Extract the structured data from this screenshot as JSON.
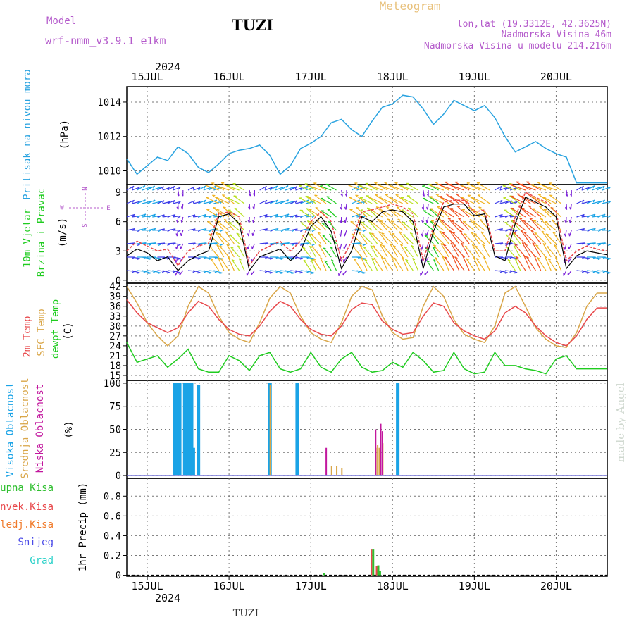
{
  "header": {
    "model_label": "Model",
    "model_name": "wrf-nmm_v3.9.1 e1km",
    "station": "TUZI",
    "title": "Meteogram",
    "lonlat": "lon,lat (19.3312E, 42.3625N)",
    "altitude": "Nadmorska Visina 46m",
    "model_altitude": "Nadmorska Visina u modelu 214.216m",
    "footer_station": "TUZI",
    "watermark": "made by Angel"
  },
  "colors": {
    "pressure": "#29a3e0",
    "temp2m": "#e8474a",
    "sfc": "#d9a648",
    "dewpt": "#1fcc1f",
    "high_cloud": "#1aa3e6",
    "mid_cloud": "#d9a648",
    "low_cloud": "#c2179e",
    "total_precip": "#2fbf2f",
    "conv_precip": "#e8474a",
    "frz_precip": "#f07a2a",
    "snow": "#4a4ae8",
    "hail": "#2ad1c9",
    "grid": "#777777"
  },
  "time_axis": {
    "year": "2024",
    "days": [
      "15JUL",
      "16JUL",
      "17JUL",
      "18JUL",
      "19JUL",
      "20JUL"
    ],
    "start_hour": 0,
    "end_hour": 141
  },
  "panels": {
    "pressure": {
      "label": "Pritisak na nivou mora",
      "unit": "(hPa)",
      "ticks": [
        "1010",
        "1012",
        "1014"
      ]
    },
    "wind": {
      "label1": "10m Vjetar",
      "label2": "Brzina i Pravac",
      "unit": "(m/s)",
      "ticks": [
        "0",
        "3",
        "6",
        "9"
      ],
      "compass": {
        "n": "N",
        "s": "S",
        "e": "E",
        "w": "W"
      }
    },
    "temp": {
      "label_2m": "2m Temp",
      "label_sfc": "SFC Temp",
      "label_dew": "dewpt Temp",
      "unit": "(C)",
      "ticks": [
        "15",
        "18",
        "21",
        "24",
        "27",
        "30",
        "33",
        "36",
        "39",
        "42"
      ]
    },
    "cloud": {
      "label_high": "Visoka Oblacnost",
      "label_mid": "Srednja Oblacnost",
      "label_low": "Niska Oblacnost",
      "unit": "(%)",
      "ticks": [
        "0",
        "25",
        "50",
        "75",
        "100"
      ]
    },
    "precip": {
      "label_total": "Ukupna Kisa",
      "label_conv": "Konvek.Kisa",
      "label_frz": "Zaledj.Kisa",
      "label_snow": "Snijeg",
      "label_hail": "Grad",
      "unit": "1hr Precip (mm)",
      "ticks": [
        "0",
        "0.2",
        "0.4",
        "0.6",
        "0.8"
      ]
    }
  },
  "chart_data": {
    "type": "line",
    "x_unit": "hours since 15JUL 00",
    "pressure": {
      "hours": [
        0,
        3,
        6,
        9,
        12,
        15,
        18,
        21,
        24,
        27,
        30,
        33,
        36,
        39,
        42,
        45,
        48,
        51,
        54,
        57,
        60,
        63,
        66,
        69,
        72,
        75,
        78,
        81,
        84,
        87,
        90,
        93,
        96,
        99,
        102,
        105,
        108,
        111,
        114,
        117,
        120,
        123,
        126,
        129,
        132,
        135,
        138,
        141
      ],
      "values": [
        1010.7,
        1009.8,
        1010.3,
        1010.8,
        1010.6,
        1011.4,
        1011.0,
        1010.2,
        1009.9,
        1010.4,
        1011.0,
        1011.2,
        1011.3,
        1011.5,
        1010.9,
        1009.8,
        1010.3,
        1011.3,
        1011.6,
        1012.0,
        1012.8,
        1013.0,
        1012.4,
        1012.0,
        1012.9,
        1013.7,
        1013.9,
        1014.4,
        1014.3,
        1013.6,
        1012.7,
        1013.3,
        1014.1,
        1013.8,
        1013.5,
        1013.8,
        1013.1,
        1012.0,
        1011.1,
        1011.4,
        1011.7,
        1011.3,
        1011.0,
        1010.8,
        1009.3,
        1009.3,
        1009.3,
        1009.3
      ],
      "ylim": [
        1009.2,
        1014.9
      ]
    },
    "wind": {
      "hours": [
        0,
        3,
        6,
        9,
        12,
        15,
        18,
        21,
        24,
        27,
        30,
        33,
        36,
        39,
        42,
        45,
        48,
        51,
        54,
        57,
        60,
        63,
        66,
        69,
        72,
        75,
        78,
        81,
        84,
        87,
        90,
        93,
        96,
        99,
        102,
        105,
        108,
        111,
        114,
        117,
        120,
        123,
        126,
        129,
        132,
        135,
        138,
        141
      ],
      "speed": [
        2.5,
        3.2,
        2.8,
        2.0,
        2.4,
        1.0,
        2.0,
        2.6,
        3.0,
        6.5,
        6.8,
        5.8,
        1.0,
        2.4,
        2.8,
        3.2,
        2.0,
        3.0,
        5.5,
        6.5,
        5.0,
        1.2,
        3.0,
        6.5,
        6.0,
        7.0,
        7.2,
        7.0,
        6.0,
        1.2,
        5.0,
        7.5,
        7.8,
        7.8,
        6.6,
        6.8,
        2.5,
        2.0,
        5.8,
        8.5,
        8.0,
        7.5,
        6.5,
        1.2,
        2.5,
        3.0,
        2.8,
        2.6
      ],
      "gust": [
        3.0,
        4.0,
        3.5,
        3.0,
        3.2,
        1.5,
        3.0,
        3.5,
        3.8,
        6.8,
        7.0,
        6.5,
        1.5,
        3.0,
        3.5,
        4.0,
        3.0,
        4.0,
        6.0,
        7.0,
        6.0,
        2.0,
        4.0,
        7.0,
        7.2,
        7.5,
        7.8,
        7.5,
        6.8,
        2.0,
        5.5,
        8.0,
        8.2,
        8.2,
        7.0,
        7.2,
        3.0,
        3.0,
        6.5,
        9.0,
        8.5,
        8.0,
        7.0,
        2.0,
        3.0,
        3.5,
        3.2,
        3.0
      ],
      "ylim": [
        -0.3,
        9.8
      ]
    },
    "temperature": {
      "hours": [
        0,
        3,
        6,
        9,
        12,
        15,
        18,
        21,
        24,
        27,
        30,
        33,
        36,
        39,
        42,
        45,
        48,
        51,
        54,
        57,
        60,
        63,
        66,
        69,
        72,
        75,
        78,
        81,
        84,
        87,
        90,
        93,
        96,
        99,
        102,
        105,
        108,
        111,
        114,
        117,
        120,
        123,
        126,
        129,
        132,
        135,
        138,
        141
      ],
      "t2m": [
        38.0,
        34.0,
        31.0,
        29.5,
        28.0,
        29.5,
        34.0,
        37.5,
        36.0,
        32.0,
        29.0,
        27.5,
        27.0,
        30.0,
        34.5,
        37.5,
        36.0,
        32.0,
        29.0,
        27.5,
        27.0,
        30.0,
        35.0,
        37.0,
        36.5,
        31.5,
        29.0,
        27.5,
        28.0,
        33.0,
        37.0,
        36.0,
        31.0,
        28.5,
        27.0,
        26.0,
        28.5,
        34.0,
        36.0,
        34.0,
        30.0,
        27.0,
        25.0,
        24.0,
        27.0,
        32.0,
        35.5,
        35.5
      ],
      "sfc": [
        42.0,
        37.0,
        31.0,
        27.0,
        24.0,
        27.0,
        36.0,
        42.0,
        40.0,
        33.0,
        28.0,
        26.0,
        25.0,
        31.0,
        38.5,
        42.0,
        40.0,
        33.0,
        28.0,
        26.0,
        25.0,
        31.0,
        39.0,
        42.0,
        41.0,
        33.0,
        28.0,
        26.0,
        26.5,
        36.0,
        42.0,
        39.0,
        32.0,
        27.5,
        26.0,
        25.0,
        30.0,
        40.0,
        42.0,
        36.0,
        29.5,
        26.0,
        24.0,
        23.5,
        28.0,
        36.0,
        40.0,
        40.0
      ],
      "dewpt": [
        25.0,
        19.0,
        20.0,
        21.0,
        17.5,
        20.0,
        23.0,
        17.0,
        16.0,
        16.0,
        21.0,
        19.5,
        16.5,
        21.0,
        22.0,
        17.0,
        16.0,
        17.0,
        22.0,
        17.5,
        16.0,
        20.0,
        22.0,
        17.5,
        16.0,
        16.5,
        19.0,
        17.5,
        22.0,
        19.5,
        16.0,
        16.5,
        22.0,
        17.0,
        15.5,
        16.0,
        22.0,
        18.0,
        18.0,
        17.0,
        16.5,
        15.5,
        20.0,
        21.0,
        17.0,
        17.0,
        17.0,
        17.0
      ],
      "ylim": [
        13.5,
        43.0
      ]
    },
    "cloud": {
      "ylim": [
        -3,
        103
      ],
      "high": [
        [
          13.5,
          100
        ],
        [
          14.0,
          100
        ],
        [
          15.0,
          100
        ],
        [
          16.5,
          100
        ],
        [
          17.0,
          100
        ],
        [
          17.5,
          100
        ],
        [
          18.0,
          100
        ],
        [
          18.5,
          100
        ],
        [
          19.0,
          30
        ],
        [
          20.5,
          98
        ],
        [
          41.5,
          100
        ],
        [
          49.5,
          100
        ],
        [
          79.0,
          100
        ]
      ],
      "mid": [
        [
          41.5,
          98
        ],
        [
          59.5,
          10
        ],
        [
          61.0,
          10
        ],
        [
          62.5,
          8
        ],
        [
          72.5,
          30
        ],
        [
          73.0,
          33
        ],
        [
          73.5,
          30
        ],
        [
          74.5,
          35
        ]
      ],
      "low": [
        [
          57.5,
          30
        ],
        [
          72.0,
          50
        ],
        [
          73.5,
          56
        ],
        [
          74.0,
          48
        ]
      ]
    },
    "precip": {
      "ylim": [
        -0.01,
        0.98
      ],
      "total": [
        [
          57.5,
          0.02
        ],
        [
          72.0,
          0.26
        ],
        [
          73.5,
          0.1
        ],
        [
          74.0,
          0.04
        ]
      ],
      "conv": [
        [
          72.0,
          0.26
        ],
        [
          73.5,
          0.09
        ]
      ]
    }
  }
}
